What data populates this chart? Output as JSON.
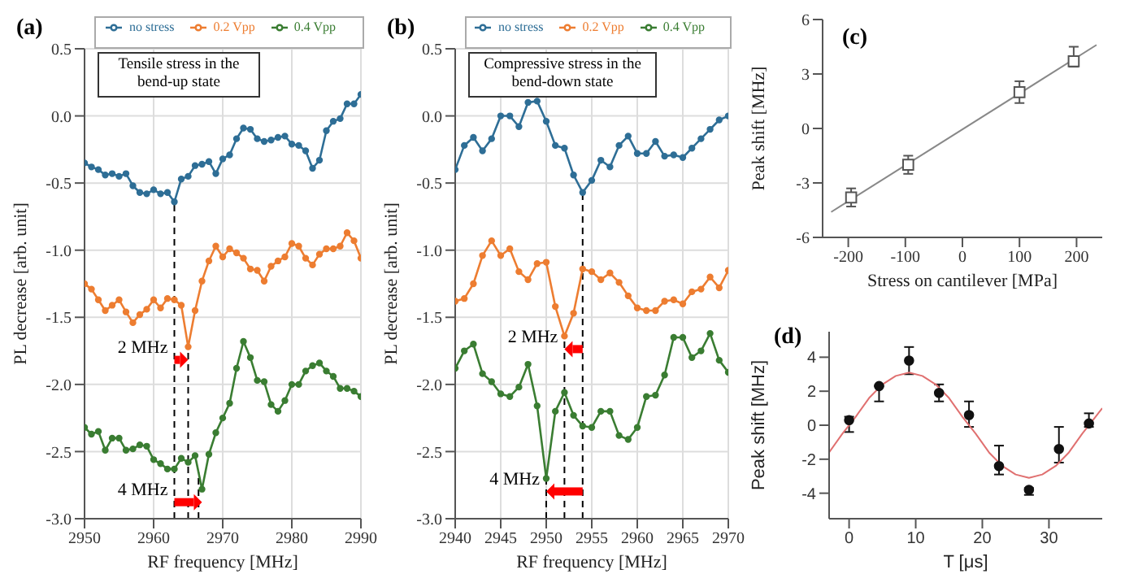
{
  "chart_data": [
    {
      "type": "line",
      "title": "(a)",
      "xlabel": "RF frequency [MHz]",
      "ylabel": "PL decrease [arb. unit]",
      "legend": "top",
      "grid": true,
      "marker": "circle",
      "x": [
        2950,
        2951,
        2952,
        2953,
        2954,
        2955,
        2956,
        2957,
        2958,
        2959,
        2960,
        2961,
        2962,
        2963,
        2964,
        2965,
        2966,
        2967,
        2968,
        2969,
        2970,
        2971,
        2972,
        2973,
        2974,
        2975,
        2976,
        2977,
        2978,
        2979,
        2980,
        2981,
        2982,
        2983,
        2984,
        2985,
        2986,
        2987,
        2988,
        2989,
        2990
      ],
      "series": [
        {
          "name": "no stress",
          "color": "#2e6e96",
          "values": [
            -0.35,
            -0.38,
            -0.4,
            -0.44,
            -0.43,
            -0.45,
            -0.43,
            -0.52,
            -0.57,
            -0.58,
            -0.55,
            -0.58,
            -0.57,
            -0.64,
            -0.47,
            -0.45,
            -0.37,
            -0.36,
            -0.34,
            -0.43,
            -0.32,
            -0.29,
            -0.17,
            -0.09,
            -0.1,
            -0.17,
            -0.19,
            -0.18,
            -0.16,
            -0.15,
            -0.21,
            -0.22,
            -0.26,
            -0.39,
            -0.33,
            -0.11,
            -0.04,
            -0.02,
            0.09,
            0.09,
            0.16
          ]
        },
        {
          "name": "0.2 Vpp",
          "color": "#ed7d31",
          "values": [
            -1.25,
            -1.29,
            -1.37,
            -1.45,
            -1.41,
            -1.37,
            -1.46,
            -1.54,
            -1.48,
            -1.44,
            -1.37,
            -1.43,
            -1.36,
            -1.37,
            -1.41,
            -1.72,
            -1.45,
            -1.23,
            -1.08,
            -0.97,
            -1.05,
            -0.99,
            -1.02,
            -1.06,
            -1.14,
            -1.15,
            -1.23,
            -1.12,
            -1.08,
            -1.05,
            -0.95,
            -0.97,
            -1.06,
            -1.11,
            -1.03,
            -0.99,
            -0.99,
            -0.97,
            -0.87,
            -0.93,
            -1.06
          ]
        },
        {
          "name": "0.4 Vpp",
          "color": "#3a7d32",
          "values": [
            -2.32,
            -2.37,
            -2.35,
            -2.49,
            -2.4,
            -2.4,
            -2.49,
            -2.48,
            -2.45,
            -2.46,
            -2.56,
            -2.59,
            -2.63,
            -2.63,
            -2.55,
            -2.58,
            -2.53,
            -2.78,
            -2.52,
            -2.36,
            -2.25,
            -2.14,
            -1.88,
            -1.68,
            -1.8,
            -1.97,
            -1.98,
            -2.15,
            -2.2,
            -2.12,
            -2.0,
            -2.0,
            -1.9,
            -1.86,
            -1.84,
            -1.9,
            -1.94,
            -2.03,
            -2.03,
            -2.05,
            -2.09
          ]
        }
      ],
      "xlim": [
        2950,
        2990
      ],
      "xticks": [
        2950,
        2960,
        2970,
        2980,
        2990
      ],
      "ylim": [
        -3,
        0.5
      ],
      "yticks": [
        0.5,
        {
          "value": 0,
          "label": "0.0"
        },
        -0.5,
        {
          "value": -1,
          "label": "-1.0"
        },
        -1.5,
        {
          "value": -2,
          "label": "-2.0"
        },
        -2.5,
        {
          "value": -3,
          "label": "-3.0"
        }
      ],
      "ref_lines": [
        {
          "axis": "x",
          "value": 2963,
          "color": "#000000",
          "line_style": "dashed"
        },
        {
          "axis": "x",
          "value": 2965,
          "color": "#000000",
          "line_style": "dashed"
        },
        {
          "axis": "x",
          "value": 2966.5,
          "color": "#000000",
          "line_style": "dashed"
        }
      ],
      "annotations": [
        "Tensile stress in the bend-up state",
        {
          "text": "2 MHz",
          "x": 2965,
          "y": -1.72
        },
        {
          "text": "4 MHz",
          "x": 2967,
          "y": -2.78
        }
      ]
    },
    {
      "type": "line",
      "title": "(b)",
      "xlabel": "RF frequency [MHz]",
      "ylabel": "PL decrease [arb. unit]",
      "legend": "top",
      "grid": true,
      "marker": "circle",
      "x": [
        2940,
        2941,
        2942,
        2943,
        2944,
        2945,
        2946,
        2947,
        2948,
        2949,
        2950,
        2951,
        2952,
        2953,
        2954,
        2955,
        2956,
        2957,
        2958,
        2959,
        2960,
        2961,
        2962,
        2963,
        2964,
        2965,
        2966,
        2967,
        2968,
        2969,
        2970
      ],
      "series": [
        {
          "name": "no stress",
          "color": "#2e6e96",
          "values": [
            -0.4,
            -0.22,
            -0.16,
            -0.26,
            -0.17,
            0.0,
            0.0,
            -0.08,
            0.1,
            0.11,
            -0.04,
            -0.22,
            -0.24,
            -0.44,
            -0.57,
            -0.48,
            -0.33,
            -0.38,
            -0.22,
            -0.15,
            -0.28,
            -0.28,
            -0.19,
            -0.3,
            -0.29,
            -0.31,
            -0.24,
            -0.17,
            -0.1,
            -0.03,
            0.0
          ]
        },
        {
          "name": "0.2 Vpp",
          "color": "#ed7d31",
          "values": [
            -1.38,
            -1.36,
            -1.25,
            -1.04,
            -0.93,
            -1.04,
            -0.99,
            -1.16,
            -1.22,
            -1.1,
            -1.09,
            -1.42,
            -1.64,
            -1.47,
            -1.14,
            -1.16,
            -1.22,
            -1.17,
            -1.24,
            -1.34,
            -1.43,
            -1.45,
            -1.45,
            -1.38,
            -1.37,
            -1.4,
            -1.31,
            -1.29,
            -1.2,
            -1.28,
            -1.15
          ]
        },
        {
          "name": "0.4 Vpp",
          "color": "#3a7d32",
          "values": [
            -1.88,
            -1.75,
            -1.7,
            -1.92,
            -1.98,
            -2.07,
            -2.09,
            -2.02,
            -1.85,
            -2.16,
            -2.7,
            -2.2,
            -2.06,
            -2.23,
            -2.31,
            -2.32,
            -2.2,
            -2.2,
            -2.38,
            -2.41,
            -2.32,
            -2.09,
            -2.08,
            -1.93,
            -1.65,
            -1.65,
            -1.8,
            -1.75,
            -1.62,
            -1.82,
            -1.91
          ]
        }
      ],
      "xlim": [
        2940,
        2970
      ],
      "xticks": [
        2940,
        2945,
        2950,
        2955,
        2960,
        2965,
        2970
      ],
      "ylim": [
        -3,
        0.5
      ],
      "yticks": [
        0.5,
        {
          "value": 0,
          "label": "0.0"
        },
        -0.5,
        {
          "value": -1,
          "label": "-1.0"
        },
        -1.5,
        {
          "value": -2,
          "label": "-2.0"
        },
        -2.5,
        {
          "value": -3,
          "label": "-3.0"
        }
      ],
      "ref_lines": [
        {
          "axis": "x",
          "value": 2954,
          "color": "#000000",
          "line_style": "dashed"
        },
        {
          "axis": "x",
          "value": 2952,
          "color": "#000000",
          "line_style": "dashed"
        },
        {
          "axis": "x",
          "value": 2950,
          "color": "#000000",
          "line_style": "dashed"
        }
      ],
      "annotations": [
        "Compressive stress in the bend-down state",
        {
          "text": "2 MHz",
          "x": 2952,
          "y": -1.64
        },
        {
          "text": "4 MHz",
          "x": 2950,
          "y": -2.7
        }
      ]
    },
    {
      "type": "scatter",
      "title": "(c)",
      "xlabel": "Stress on cantilever  [MPa]",
      "ylabel": "Peak shift [MHz]",
      "series": [
        {
          "type": "scatter",
          "marker": "square",
          "color": "#555555",
          "x": [
            -195,
            -95,
            100,
            195
          ],
          "values": [
            -3.8,
            -2.0,
            2.0,
            3.7
          ],
          "errors": [
            0.5,
            0.5,
            0.6,
            [
              3.4,
              4.5
            ]
          ]
        },
        {
          "type": "line",
          "marker": "none",
          "color": "#888888",
          "x": [
            -230,
            235
          ],
          "values": [
            -4.6,
            4.6
          ]
        }
      ],
      "xlim": [
        -245,
        245
      ],
      "xticks": [
        -200,
        -100,
        0,
        100,
        200
      ],
      "ylim": [
        -6,
        6
      ],
      "yticks": [
        -6,
        -3,
        0,
        3,
        6
      ]
    },
    {
      "type": "scatter",
      "title": "(d)",
      "xlabel": "T [μs]",
      "ylabel": "Peak shift [MHz]",
      "series": [
        {
          "type": "scatter",
          "marker": "circle",
          "color": "#111111",
          "x": [
            0,
            4.5,
            9,
            13.5,
            18,
            22.5,
            27,
            31.5,
            36
          ],
          "values": [
            0.3,
            2.3,
            3.8,
            1.9,
            0.6,
            -2.4,
            -3.8,
            -1.4,
            0.1
          ],
          "errors": [
            [
              -0.4,
              0.5
            ],
            [
              1.4,
              2.3
            ],
            [
              3.0,
              4.6
            ],
            [
              1.4,
              2.4
            ],
            [
              -0.1,
              1.4
            ],
            [
              -2.9,
              -1.2
            ],
            [
              -4.1,
              -3.7
            ],
            [
              -2.2,
              -0.1
            ],
            [
              -0.1,
              0.7
            ]
          ]
        },
        {
          "type": "line",
          "marker": "none",
          "color": "#e07070",
          "x": [
            -3,
            -1,
            1,
            3,
            5,
            7,
            9,
            11,
            13,
            15,
            17,
            19,
            21,
            23,
            25,
            27,
            29,
            31,
            33,
            35,
            37,
            38
          ],
          "values": [
            -1.6,
            -0.5,
            0.5,
            1.6,
            2.4,
            2.9,
            3.1,
            2.9,
            2.4,
            1.6,
            0.5,
            -0.5,
            -1.6,
            -2.4,
            -2.9,
            -3.1,
            -2.9,
            -2.4,
            -1.6,
            -0.5,
            0.5,
            1.0
          ]
        }
      ],
      "xlim": [
        -3,
        38
      ],
      "xticks": [
        0,
        10,
        20,
        30
      ],
      "ylim": [
        -5.5,
        5.5
      ],
      "yticks": [
        -4,
        -2,
        0,
        2,
        4
      ]
    }
  ]
}
